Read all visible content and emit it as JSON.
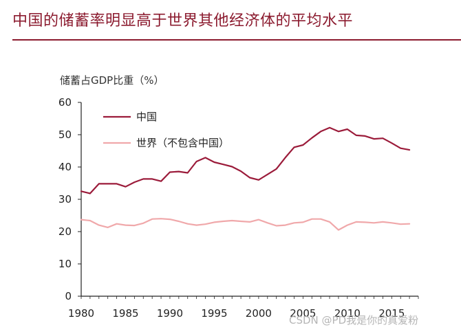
{
  "page": {
    "title": "中国的储蓄率明显高于世界其他经济体的平均水平",
    "watermark": "CSDN @PD我是你的真爱粉"
  },
  "colors": {
    "title": "#8b1a2e",
    "china": "#9b1b3a",
    "world": "#f0a8aa",
    "axis": "#222222"
  },
  "chart_data": {
    "type": "line",
    "title": "",
    "ylabel": "储蓄占GDP比重（%）",
    "xlabel": "",
    "x": [
      1980,
      1981,
      1982,
      1983,
      1984,
      1985,
      1986,
      1987,
      1988,
      1989,
      1990,
      1991,
      1992,
      1993,
      1994,
      1995,
      1996,
      1997,
      1998,
      1999,
      2000,
      2001,
      2002,
      2003,
      2004,
      2005,
      2006,
      2007,
      2008,
      2009,
      2010,
      2011,
      2012,
      2013,
      2014,
      2015,
      2016,
      2017
    ],
    "xlim": [
      1980,
      2018
    ],
    "ylim": [
      0,
      60
    ],
    "xticks": [
      1980,
      1985,
      1990,
      1995,
      2000,
      2005,
      2010,
      2015
    ],
    "yticks": [
      0,
      10,
      20,
      30,
      40,
      50,
      60
    ],
    "legend_position": "top-left",
    "series": [
      {
        "name": "中国",
        "color": "#9b1b3a",
        "values": [
          32.5,
          31.8,
          34.8,
          34.8,
          34.8,
          33.9,
          35.3,
          36.3,
          36.3,
          35.6,
          38.4,
          38.6,
          38.2,
          41.7,
          42.9,
          41.5,
          40.8,
          40.1,
          38.7,
          36.7,
          36.0,
          37.7,
          39.4,
          42.9,
          46.1,
          46.8,
          49.0,
          51.0,
          52.2,
          51.0,
          51.7,
          49.8,
          49.6,
          48.7,
          48.9,
          47.4,
          45.8,
          45.3
        ]
      },
      {
        "name": "世界（不包含中国）",
        "color": "#f0a8aa",
        "values": [
          23.7,
          23.4,
          22.0,
          21.3,
          22.4,
          22.0,
          21.9,
          22.6,
          23.9,
          24.0,
          23.8,
          23.2,
          22.4,
          22.0,
          22.3,
          22.9,
          23.2,
          23.4,
          23.2,
          23.0,
          23.7,
          22.7,
          21.8,
          22.0,
          22.7,
          22.9,
          23.9,
          23.9,
          23.0,
          20.5,
          22.0,
          23.0,
          22.9,
          22.7,
          23.0,
          22.7,
          22.3,
          22.4
        ]
      }
    ]
  }
}
